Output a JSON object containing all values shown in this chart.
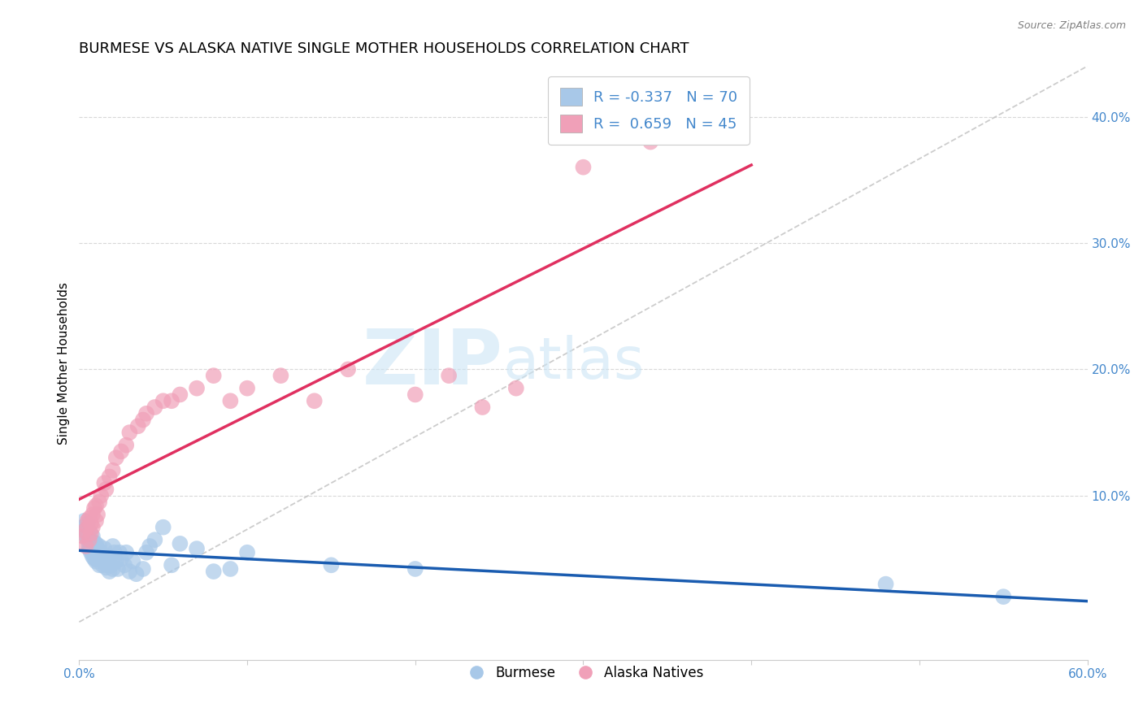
{
  "title": "BURMESE VS ALASKA NATIVE SINGLE MOTHER HOUSEHOLDS CORRELATION CHART",
  "source": "Source: ZipAtlas.com",
  "ylabel": "Single Mother Households",
  "xlim": [
    0.0,
    0.6
  ],
  "ylim": [
    -0.03,
    0.44
  ],
  "burmese_color": "#a8c8e8",
  "alaska_color": "#f0a0b8",
  "burmese_line_color": "#1a5cb0",
  "alaska_line_color": "#e03060",
  "diagonal_line_color": "#c0c0c0",
  "watermark_color": "#cce5f5",
  "grid_color": "#d8d8d8",
  "tick_color": "#4488cc",
  "title_fontsize": 13,
  "axis_label_fontsize": 11,
  "tick_fontsize": 11,
  "legend_fontsize": 13,
  "burmese_N": 70,
  "alaska_N": 45,
  "burmese_R": -0.337,
  "alaska_R": 0.659,
  "burmese_x": [
    0.002,
    0.003,
    0.004,
    0.004,
    0.005,
    0.005,
    0.005,
    0.006,
    0.006,
    0.006,
    0.007,
    0.007,
    0.007,
    0.007,
    0.008,
    0.008,
    0.008,
    0.008,
    0.009,
    0.009,
    0.009,
    0.01,
    0.01,
    0.01,
    0.01,
    0.011,
    0.011,
    0.012,
    0.012,
    0.012,
    0.013,
    0.013,
    0.014,
    0.014,
    0.015,
    0.015,
    0.016,
    0.016,
    0.017,
    0.017,
    0.018,
    0.018,
    0.019,
    0.02,
    0.02,
    0.021,
    0.022,
    0.023,
    0.024,
    0.025,
    0.027,
    0.028,
    0.03,
    0.032,
    0.034,
    0.038,
    0.04,
    0.042,
    0.045,
    0.05,
    0.055,
    0.06,
    0.07,
    0.08,
    0.09,
    0.1,
    0.15,
    0.2,
    0.48,
    0.55
  ],
  "burmese_y": [
    0.075,
    0.08,
    0.072,
    0.068,
    0.078,
    0.065,
    0.07,
    0.06,
    0.072,
    0.058,
    0.062,
    0.065,
    0.058,
    0.055,
    0.068,
    0.06,
    0.055,
    0.052,
    0.063,
    0.058,
    0.05,
    0.062,
    0.055,
    0.05,
    0.048,
    0.058,
    0.052,
    0.06,
    0.055,
    0.045,
    0.055,
    0.05,
    0.052,
    0.045,
    0.058,
    0.048,
    0.05,
    0.043,
    0.052,
    0.045,
    0.048,
    0.04,
    0.045,
    0.06,
    0.042,
    0.055,
    0.048,
    0.042,
    0.055,
    0.05,
    0.045,
    0.055,
    0.04,
    0.048,
    0.038,
    0.042,
    0.055,
    0.06,
    0.065,
    0.075,
    0.045,
    0.062,
    0.058,
    0.04,
    0.042,
    0.055,
    0.045,
    0.042,
    0.03,
    0.02
  ],
  "alaska_x": [
    0.002,
    0.003,
    0.004,
    0.005,
    0.005,
    0.006,
    0.006,
    0.007,
    0.007,
    0.008,
    0.008,
    0.009,
    0.01,
    0.01,
    0.011,
    0.012,
    0.013,
    0.015,
    0.016,
    0.018,
    0.02,
    0.022,
    0.025,
    0.028,
    0.03,
    0.035,
    0.038,
    0.04,
    0.045,
    0.05,
    0.055,
    0.06,
    0.07,
    0.08,
    0.09,
    0.1,
    0.12,
    0.14,
    0.16,
    0.2,
    0.22,
    0.24,
    0.26,
    0.3,
    0.34
  ],
  "alaska_y": [
    0.068,
    0.072,
    0.06,
    0.075,
    0.08,
    0.065,
    0.082,
    0.07,
    0.078,
    0.085,
    0.075,
    0.09,
    0.08,
    0.092,
    0.085,
    0.095,
    0.1,
    0.11,
    0.105,
    0.115,
    0.12,
    0.13,
    0.135,
    0.14,
    0.15,
    0.155,
    0.16,
    0.165,
    0.17,
    0.175,
    0.175,
    0.18,
    0.185,
    0.195,
    0.175,
    0.185,
    0.195,
    0.175,
    0.2,
    0.18,
    0.195,
    0.17,
    0.185,
    0.36,
    0.38
  ]
}
